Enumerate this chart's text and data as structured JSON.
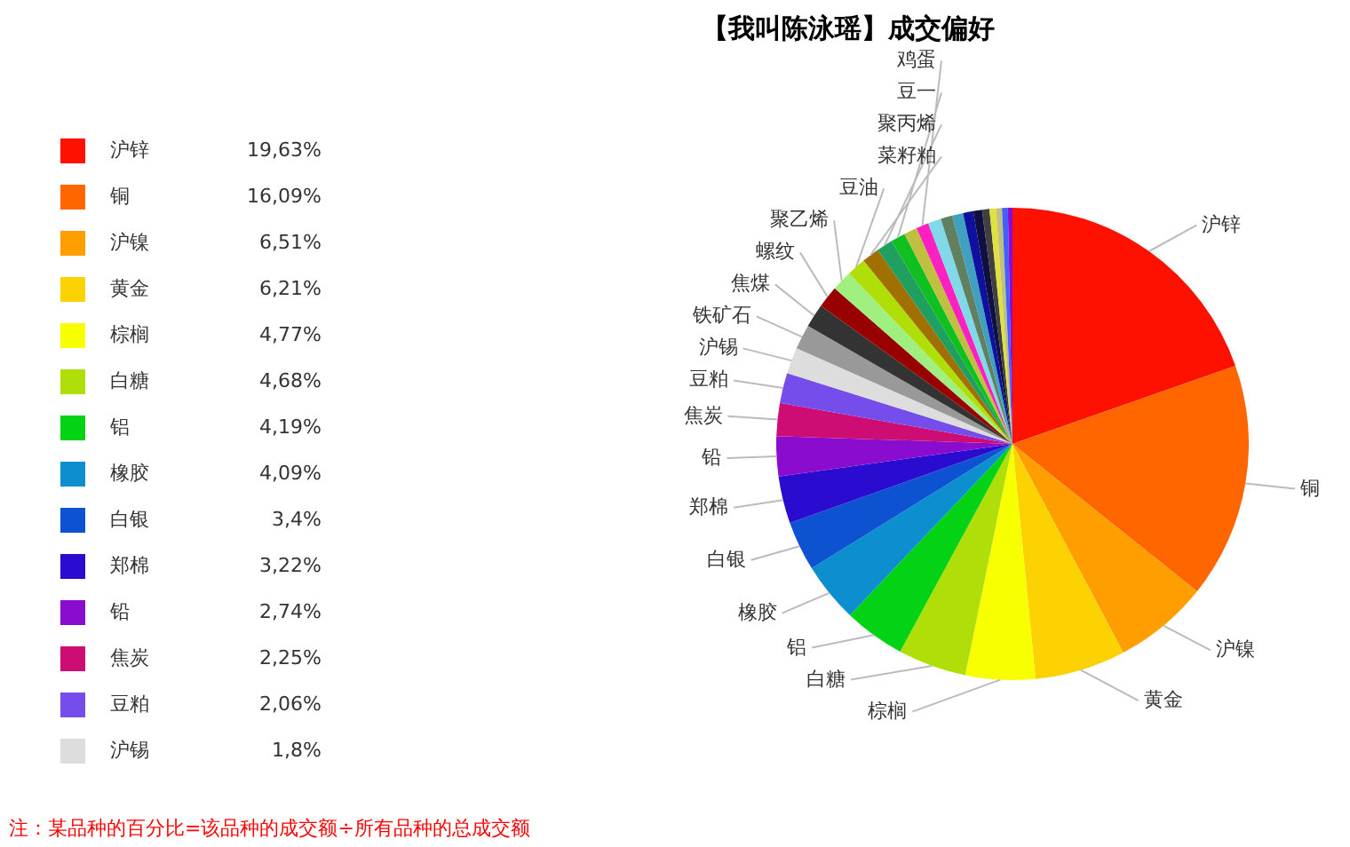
{
  "chart_data": {
    "type": "pie",
    "title": "【我叫陈泳瑶】成交偏好",
    "categories": [
      "沪锌",
      "铜",
      "沪镍",
      "黄金",
      "棕榈",
      "白糖",
      "铝",
      "橡胶",
      "白银",
      "郑棉",
      "铅",
      "焦炭",
      "豆粕",
      "沪锡",
      "铁矿石",
      "焦煤",
      "螺纹",
      "聚乙烯",
      "豆油",
      "菜籽粕",
      "聚丙烯",
      "豆一",
      null,
      "鸡蛋",
      null,
      null,
      null,
      null,
      null,
      null,
      null,
      null,
      null,
      null
    ],
    "values": [
      19.63,
      16.09,
      6.51,
      6.21,
      4.77,
      4.68,
      4.19,
      4.09,
      3.4,
      3.22,
      2.74,
      2.25,
      2.06,
      1.8,
      1.7,
      1.6,
      1.5,
      1.4,
      1.3,
      1.2,
      1.1,
      1.0,
      0.9,
      0.85,
      0.9,
      0.8,
      0.75,
      0.7,
      0.6,
      0.5,
      0.45,
      0.4,
      0.4,
      0.31
    ],
    "colors": [
      "#ff1100",
      "#ff6600",
      "#ff9e01",
      "#fcd202",
      "#f8ff01",
      "#b0de09",
      "#04d215",
      "#0d8ecf",
      "#0d52d1",
      "#2a0cd0",
      "#8a0ccf",
      "#cd0d74",
      "#754deb",
      "#dddddd",
      "#999999",
      "#333333",
      "#990000",
      "#a0f080",
      "#b0de09",
      "#a07000",
      "#20a060",
      "#10c020",
      "#c0c040",
      "#ff20c0",
      "#80d8e8",
      "#608060",
      "#40a0c0",
      "#1010a0",
      "#101040",
      "#404040",
      "#e0e040",
      "#c0c080",
      "#4060ff",
      "#8a0ccf"
    ],
    "value_labels": [
      "19,63%",
      "16,09%",
      "6,51%",
      "6,21%",
      "4,77%",
      "4,68%",
      "4,19%",
      "4,09%",
      "3,4%",
      "3,22%",
      "2,74%",
      "2,25%",
      "2,06%",
      "1,8%",
      null,
      null,
      null,
      null,
      null,
      null,
      null,
      null,
      null,
      null,
      null,
      null,
      null,
      null,
      null,
      null,
      null,
      null,
      null,
      null
    ],
    "legend": "left",
    "annotations": [
      "注：某品种的百分比=该品种的成交额÷所有品种的总成交额"
    ]
  }
}
